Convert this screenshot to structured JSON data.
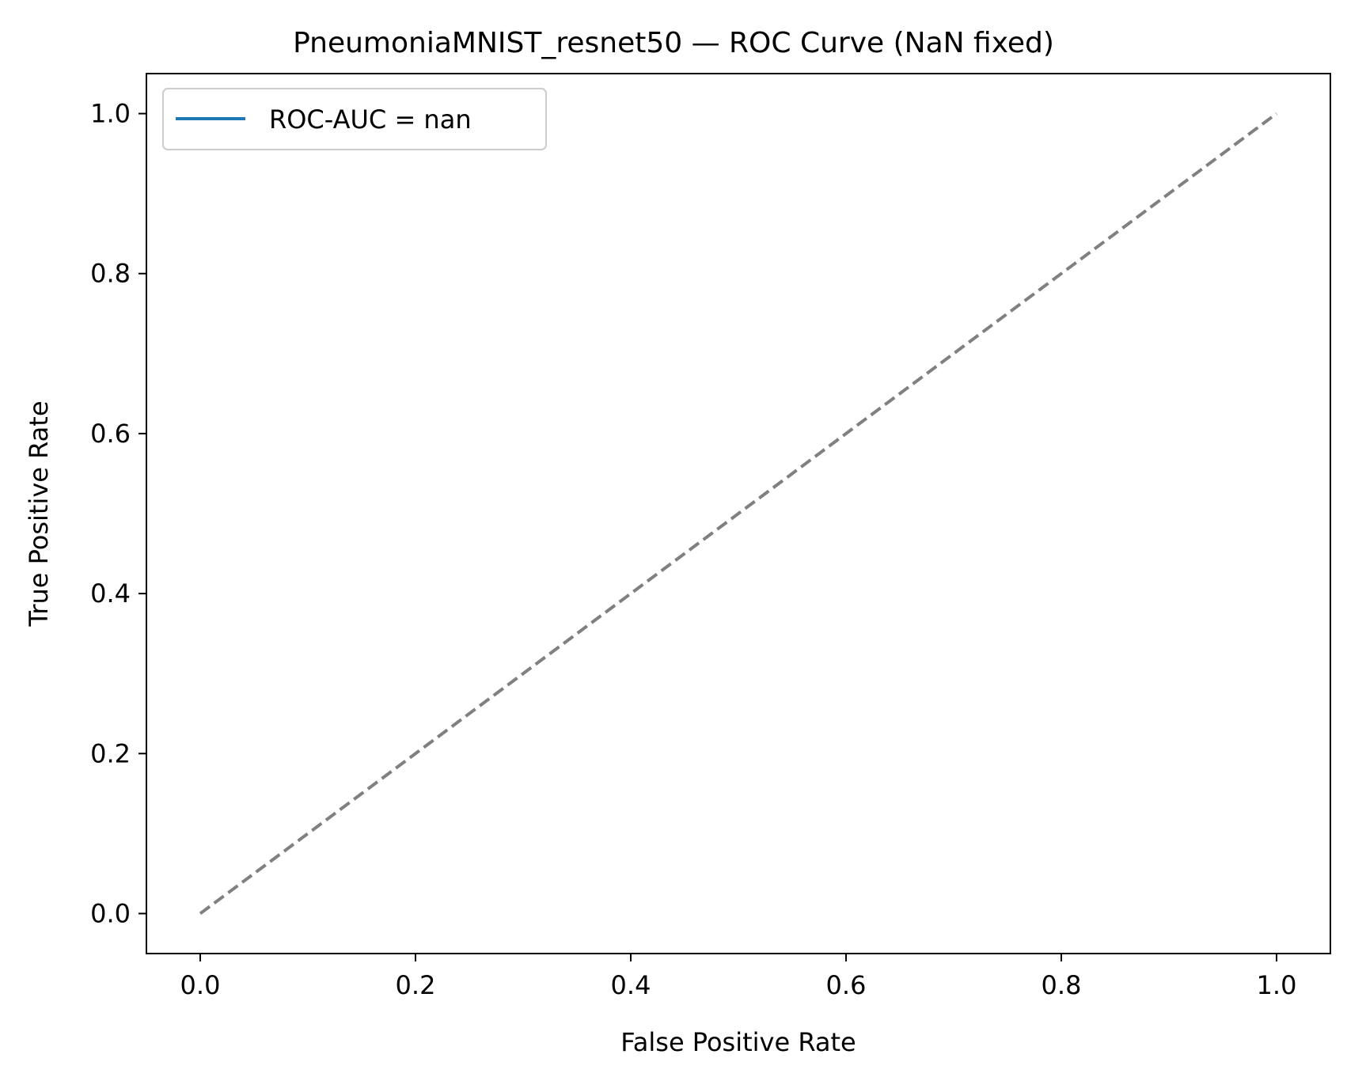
{
  "chart_data": {
    "type": "line",
    "title": "PneumoniaMNIST_resnet50 — ROC Curve (NaN fixed)",
    "xlabel": "False Positive Rate",
    "ylabel": "True Positive Rate",
    "xlim": [
      -0.05,
      1.05
    ],
    "ylim": [
      -0.05,
      1.05
    ],
    "xticks": [
      0.0,
      0.2,
      0.4,
      0.6,
      0.8,
      1.0
    ],
    "yticks": [
      0.0,
      0.2,
      0.4,
      0.6,
      0.8,
      1.0
    ],
    "xtick_labels": [
      "0.0",
      "0.2",
      "0.4",
      "0.6",
      "0.8",
      "1.0"
    ],
    "ytick_labels": [
      "0.0",
      "0.2",
      "0.4",
      "0.6",
      "0.8",
      "1.0"
    ],
    "grid": false,
    "legend_position": "upper-left",
    "series": [
      {
        "name": "ROC-AUC = nan",
        "color": "#1f77b4",
        "style": "solid",
        "x": [],
        "y": []
      },
      {
        "color": "#808080",
        "style": "dashed",
        "x": [
          0,
          1
        ],
        "y": [
          0,
          1
        ]
      }
    ]
  }
}
